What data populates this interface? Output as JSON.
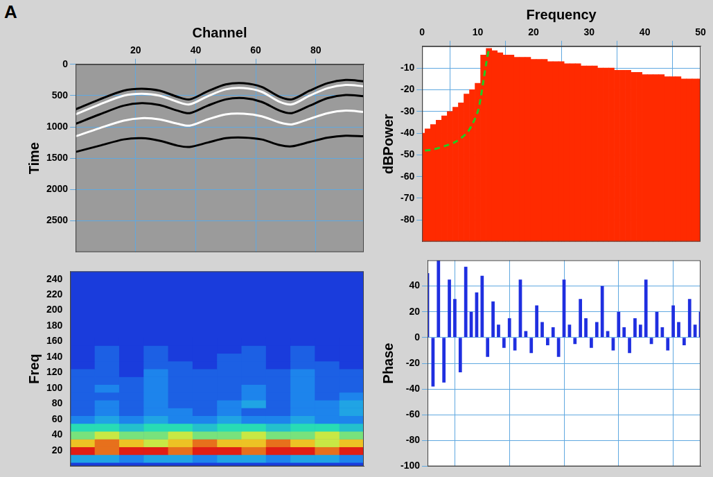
{
  "panel_label": "A",
  "chart_data": [
    {
      "type": "line",
      "x_label": "Channel",
      "y_label": "Time",
      "x": [
        0,
        8,
        16,
        22,
        28,
        34,
        38,
        44,
        50,
        56,
        62,
        68,
        72,
        78,
        84,
        90,
        96
      ],
      "series": [
        {
          "color": "#000000",
          "values": [
            720,
            560,
            420,
            390,
            420,
            520,
            560,
            430,
            320,
            300,
            360,
            520,
            560,
            420,
            300,
            250,
            270
          ]
        },
        {
          "color": "#ffffff",
          "values": [
            800,
            640,
            500,
            470,
            500,
            600,
            640,
            510,
            400,
            380,
            440,
            600,
            640,
            500,
            380,
            330,
            350
          ]
        },
        {
          "color": "#000000",
          "values": [
            950,
            800,
            660,
            620,
            650,
            740,
            780,
            660,
            560,
            540,
            600,
            740,
            780,
            660,
            540,
            490,
            510
          ]
        },
        {
          "color": "#ffffff",
          "values": [
            1150,
            1020,
            900,
            860,
            880,
            950,
            980,
            880,
            800,
            790,
            830,
            930,
            960,
            870,
            780,
            740,
            760
          ]
        },
        {
          "color": "#000000",
          "values": [
            1400,
            1300,
            1200,
            1180,
            1220,
            1300,
            1320,
            1250,
            1180,
            1170,
            1200,
            1290,
            1310,
            1240,
            1170,
            1140,
            1150
          ]
        }
      ],
      "xlim": [
        0,
        96
      ],
      "xticks": [
        20,
        40,
        60,
        80
      ],
      "ylim": [
        0,
        3000
      ],
      "yticks": [
        0,
        500,
        1000,
        1500,
        2000,
        2500
      ],
      "grid": true
    },
    {
      "type": "bar",
      "x_label": "Frequency",
      "y_label": "dBPower",
      "x": [
        0,
        1,
        2,
        3,
        4,
        5,
        6,
        7,
        8,
        9,
        10,
        11,
        12,
        13,
        14,
        15,
        16,
        17,
        18,
        19,
        20,
        21,
        22,
        23,
        24,
        25,
        26,
        27,
        28,
        29,
        30,
        31,
        32,
        33,
        34,
        35,
        36,
        37,
        38,
        39,
        40,
        41,
        42,
        43,
        44,
        45,
        46,
        47,
        48,
        49,
        50
      ],
      "series": [
        {
          "type": "bar",
          "color": "#ff2a00",
          "values": [
            -40,
            -38,
            -36,
            -34,
            -32,
            -30,
            -28,
            -26,
            -22,
            -20,
            -17,
            -4,
            -1,
            -2,
            -3,
            -4,
            -4,
            -5,
            -5,
            -5,
            -6,
            -6,
            -6,
            -7,
            -7,
            -7,
            -8,
            -8,
            -8,
            -9,
            -9,
            -9,
            -10,
            -10,
            -10,
            -11,
            -11,
            -11,
            -12,
            -12,
            -13,
            -13,
            -13,
            -13,
            -14,
            -14,
            -14,
            -15,
            -15,
            -15,
            -15
          ]
        },
        {
          "type": "line",
          "color": "#22cc22",
          "line_style": "dashed",
          "x": [
            0.5,
            2,
            4,
            6,
            8,
            9,
            10,
            10.5,
            11,
            11.5,
            12
          ],
          "values": [
            -48,
            -47.5,
            -46,
            -44,
            -40,
            -36,
            -30,
            -24,
            -16,
            -8,
            -1
          ]
        }
      ],
      "xlim": [
        0,
        50
      ],
      "xticks": [
        0,
        10,
        20,
        30,
        40,
        50
      ],
      "ylim": [
        -90,
        0
      ],
      "yticks": [
        -80,
        -70,
        -60,
        -50,
        -40,
        -30,
        -20,
        -10
      ],
      "grid": true
    },
    {
      "type": "heatmap",
      "y_label": "Freq",
      "x": [
        4,
        12,
        20,
        28,
        36,
        44,
        52,
        60,
        68,
        76,
        84,
        92
      ],
      "y": [
        10,
        20,
        30,
        40,
        50,
        60,
        70,
        80,
        90,
        100,
        110,
        120,
        130,
        140,
        150,
        160
      ],
      "cells": [
        [
          3,
          3,
          2,
          3,
          3,
          2,
          3,
          3,
          2,
          3,
          3,
          2
        ],
        [
          10,
          9,
          10,
          10,
          9,
          10,
          10,
          9,
          10,
          10,
          9,
          10
        ],
        [
          8,
          9,
          8,
          7,
          8,
          9,
          8,
          8,
          9,
          8,
          7,
          8
        ],
        [
          6,
          7,
          6,
          6,
          7,
          6,
          6,
          7,
          6,
          6,
          7,
          6
        ],
        [
          5,
          5,
          4,
          5,
          5,
          4,
          5,
          5,
          4,
          5,
          5,
          4
        ],
        [
          2,
          3,
          2,
          3,
          2,
          2,
          3,
          2,
          2,
          3,
          2,
          2
        ],
        [
          1,
          2,
          1,
          2,
          2,
          1,
          2,
          1,
          1,
          2,
          2,
          3
        ],
        [
          1,
          2,
          1,
          2,
          1,
          1,
          2,
          3,
          1,
          2,
          2,
          3
        ],
        [
          1,
          1,
          1,
          2,
          1,
          1,
          1,
          2,
          1,
          2,
          1,
          2
        ],
        [
          1,
          2,
          1,
          2,
          1,
          1,
          1,
          2,
          1,
          2,
          1,
          1
        ],
        [
          1,
          1,
          1,
          2,
          1,
          1,
          1,
          1,
          1,
          2,
          1,
          1
        ],
        [
          1,
          1,
          0,
          2,
          1,
          1,
          1,
          1,
          1,
          2,
          1,
          1
        ],
        [
          0,
          1,
          0,
          1,
          1,
          0,
          1,
          1,
          0,
          1,
          1,
          0
        ],
        [
          0,
          1,
          0,
          1,
          0,
          0,
          1,
          1,
          0,
          1,
          0,
          0
        ],
        [
          0,
          1,
          0,
          1,
          0,
          0,
          0,
          1,
          0,
          1,
          0,
          0
        ],
        [
          0,
          0,
          0,
          0,
          0,
          0,
          0,
          0,
          0,
          0,
          0,
          0
        ]
      ],
      "zlim": [
        0,
        10
      ],
      "xlim": [
        0,
        96
      ],
      "ylim": [
        0,
        250
      ],
      "yticks": [
        20,
        40,
        60,
        80,
        100,
        120,
        140,
        160,
        180,
        200,
        220,
        240
      ],
      "tick_labels": "y",
      "grid": false
    },
    {
      "type": "bar",
      "y_label": "Phase",
      "x": [
        0,
        1,
        2,
        3,
        4,
        5,
        6,
        7,
        8,
        9,
        10,
        11,
        12,
        13,
        14,
        15,
        16,
        17,
        18,
        19,
        20,
        21,
        22,
        23,
        24,
        25,
        26,
        27,
        28,
        29,
        30,
        31,
        32,
        33,
        34,
        35,
        36,
        37,
        38,
        39,
        40,
        41,
        42,
        43,
        44,
        45,
        46,
        47,
        48,
        49,
        50
      ],
      "values": [
        50,
        -38,
        60,
        -35,
        45,
        30,
        -27,
        55,
        20,
        35,
        48,
        -15,
        28,
        10,
        -8,
        15,
        -10,
        45,
        5,
        -12,
        25,
        12,
        -6,
        8,
        -15,
        45,
        10,
        -5,
        30,
        15,
        -8,
        12,
        40,
        5,
        -10,
        20,
        8,
        -12,
        15,
        10,
        45,
        -5,
        20,
        8,
        -10,
        25,
        12,
        -6,
        30,
        10,
        20
      ],
      "color": "#1f2fe0",
      "xlim": [
        0,
        50
      ],
      "xticks": [
        0,
        10,
        20,
        30,
        40,
        50
      ],
      "ylim": [
        -100,
        60
      ],
      "yticks": [
        -100,
        -80,
        -60,
        -40,
        -20,
        0,
        20,
        40
      ],
      "tick_labels": "y",
      "grid": true
    }
  ]
}
